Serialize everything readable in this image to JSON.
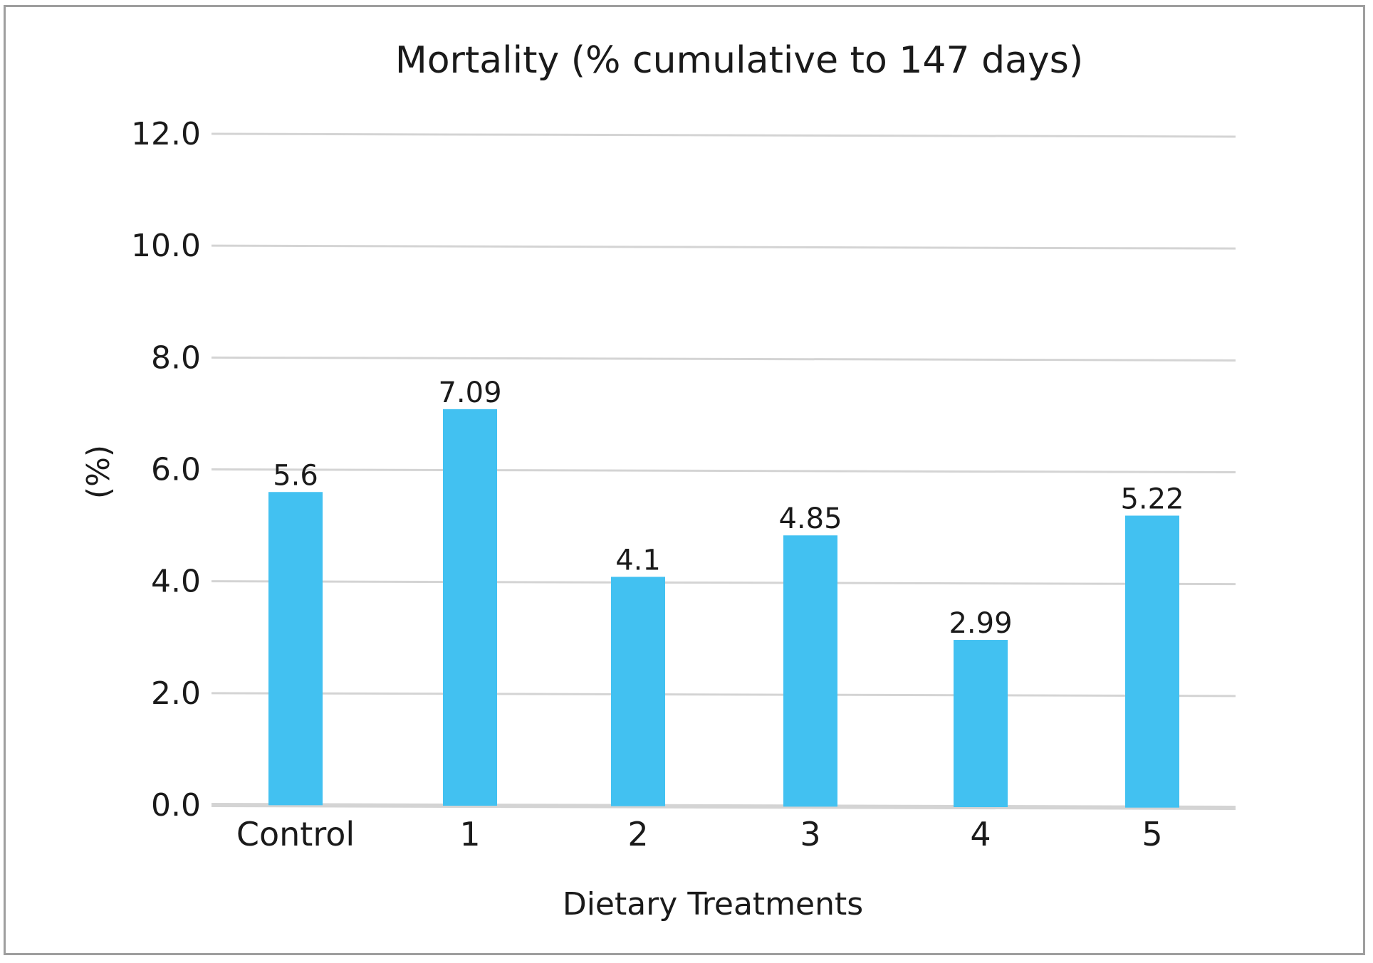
{
  "chart_data": {
    "type": "bar",
    "title": "Mortality  (% cumulative to 147 days)",
    "xlabel": "Dietary Treatments",
    "ylabel": "(%)",
    "categories": [
      "Control",
      "1",
      "2",
      "3",
      "4",
      "5"
    ],
    "values": [
      5.6,
      7.09,
      4.1,
      4.85,
      2.99,
      5.22
    ],
    "data_labels": [
      "5.6",
      "7.09",
      "4.1",
      "4.85",
      "2.99",
      "5.22"
    ],
    "ylim": [
      0,
      12
    ],
    "yticks": [
      "0.0",
      "2.0",
      "4.0",
      "6.0",
      "8.0",
      "10.0",
      "12.0"
    ],
    "grid": true,
    "legend": "none",
    "bar_color": "#42c1f1",
    "grid_color": "#d4d4d4"
  }
}
